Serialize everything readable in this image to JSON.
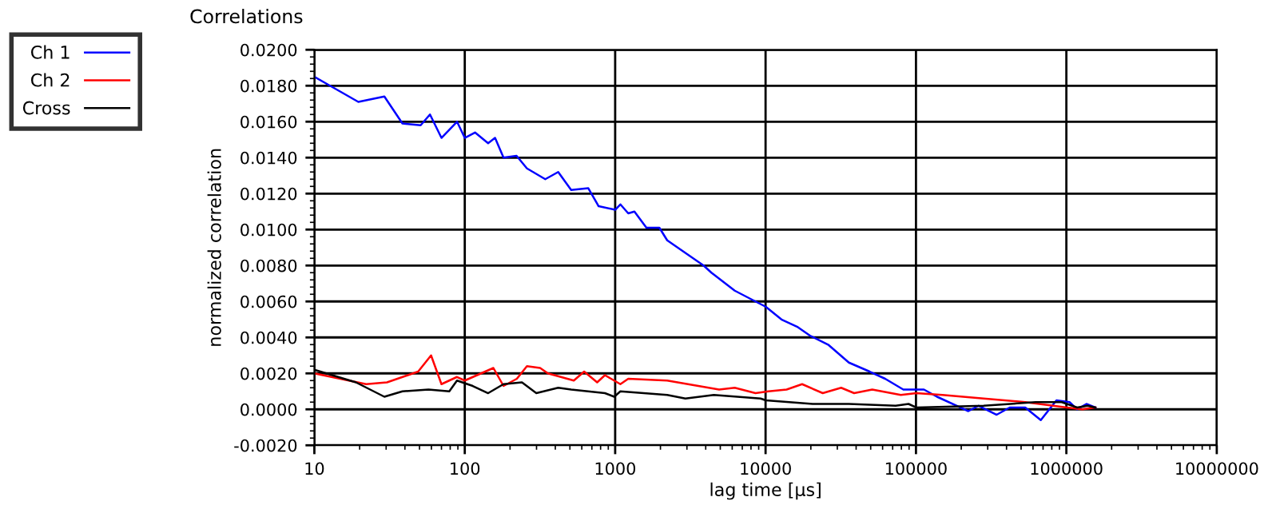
{
  "chart_data": {
    "type": "line",
    "title": "Correlations",
    "xlabel": "lag time [µs]",
    "ylabel": "normalized correlation",
    "log": "x",
    "grid": true,
    "legend": "left",
    "marker": "none",
    "line_style": "solid",
    "xlim": [
      10,
      10000000
    ],
    "xticks": [
      10,
      100,
      1000,
      10000,
      100000,
      1000000,
      10000000
    ],
    "ylim": [
      -0.002,
      0.02
    ],
    "yticks": [
      {
        "value": -0.002,
        "label": "-0.0020"
      },
      {
        "value": 0,
        "label": "0.0000"
      },
      {
        "value": 0.002,
        "label": "0.0020"
      },
      {
        "value": 0.004,
        "label": "0.0040"
      },
      {
        "value": 0.006,
        "label": "0.0060"
      },
      {
        "value": 0.008,
        "label": "0.0080"
      },
      {
        "value": 0.01,
        "label": "0.0100"
      },
      {
        "value": 0.012,
        "label": "0.0120"
      },
      {
        "value": 0.014,
        "label": "0.0140"
      },
      {
        "value": 0.016,
        "label": "0.0160"
      },
      {
        "value": 0.018,
        "label": "0.0180"
      },
      {
        "value": 0.02,
        "label": "0.0200"
      }
    ],
    "series": [
      {
        "name": "Ch 1",
        "color": "#0000ff",
        "x": [
          10,
          12.7,
          19.6,
          29.2,
          38.5,
          50.9,
          58.7,
          70,
          88.8,
          100,
          117,
          143,
          159,
          181,
          221,
          259,
          343,
          418,
          510,
          663,
          776,
          1000,
          1083,
          1222,
          1343,
          1614,
          1968,
          2218,
          3048,
          3870,
          4365,
          6237,
          8570,
          10050,
          12760,
          16190,
          19730,
          26060,
          35800,
          49200,
          62400,
          82400,
          113000,
          138000,
          223000,
          261000,
          344000,
          420000,
          533000,
          676000,
          859000,
          1050000,
          1180000,
          1360000,
          1560000
        ],
        "values": [
          0.0185,
          0.018,
          0.0171,
          0.0174,
          0.0159,
          0.0158,
          0.0164,
          0.0151,
          0.016,
          0.0151,
          0.0154,
          0.0148,
          0.0151,
          0.014,
          0.0141,
          0.0134,
          0.0128,
          0.0132,
          0.0122,
          0.0123,
          0.0113,
          0.0111,
          0.0114,
          0.0109,
          0.011,
          0.0101,
          0.0101,
          0.0094,
          0.0086,
          0.008,
          0.0076,
          0.0066,
          0.006,
          0.0057,
          0.005,
          0.0046,
          0.0041,
          0.0036,
          0.0026,
          0.0021,
          0.0017,
          0.0011,
          0.0011,
          0.0007,
          -0.0001,
          0.0002,
          -0.0003,
          0.0001,
          0.0001,
          -0.0006,
          0.0005,
          0.0004,
          0.0,
          0.0003,
          0.0001
        ]
      },
      {
        "name": "Ch 2",
        "color": "#ff0000",
        "x": [
          10,
          22.1,
          30.4,
          49,
          59.7,
          70,
          88.8,
          100,
          155,
          181,
          222,
          259,
          317,
          357,
          531,
          622,
          759,
          855,
          1083,
          1222,
          2218,
          4910,
          6237,
          8570,
          10450,
          13800,
          17500,
          24000,
          31800,
          38800,
          51200,
          79300,
          100500,
          150000,
          282000,
          533000,
          1010000,
          1280000,
          1560000
        ],
        "values": [
          0.002,
          0.0014,
          0.0015,
          0.0021,
          0.003,
          0.0014,
          0.0018,
          0.0016,
          0.0023,
          0.0013,
          0.0017,
          0.0024,
          0.0023,
          0.002,
          0.0016,
          0.0021,
          0.0015,
          0.0019,
          0.0014,
          0.0017,
          0.0016,
          0.0011,
          0.0012,
          0.0009,
          0.001,
          0.0011,
          0.0014,
          0.0009,
          0.0012,
          0.0009,
          0.0011,
          0.0008,
          0.0009,
          0.0008,
          0.0006,
          0.0004,
          0.0001,
          0.0,
          0.0001
        ]
      },
      {
        "name": "Cross",
        "color": "#000000",
        "x": [
          10,
          18.9,
          29.2,
          38.5,
          57.4,
          78.9,
          88.8,
          113,
          143,
          181,
          240,
          299,
          418,
          510,
          855,
          986,
          1083,
          2218,
          2930,
          4530,
          9270,
          10050,
          20560,
          35800,
          73300,
          89200,
          100500,
          282000,
          625000,
          931000,
          1180000,
          1380000,
          1560000
        ],
        "values": [
          0.0022,
          0.0015,
          0.0007,
          0.001,
          0.0011,
          0.001,
          0.0016,
          0.0013,
          0.0009,
          0.0014,
          0.0015,
          0.0009,
          0.0012,
          0.0011,
          0.0009,
          0.0007,
          0.001,
          0.0008,
          0.0006,
          0.0008,
          0.0006,
          0.0005,
          0.0003,
          0.0003,
          0.0002,
          0.0003,
          0.0001,
          0.0002,
          0.0004,
          0.0004,
          0.0001,
          0.0002,
          0.0001
        ]
      }
    ]
  }
}
